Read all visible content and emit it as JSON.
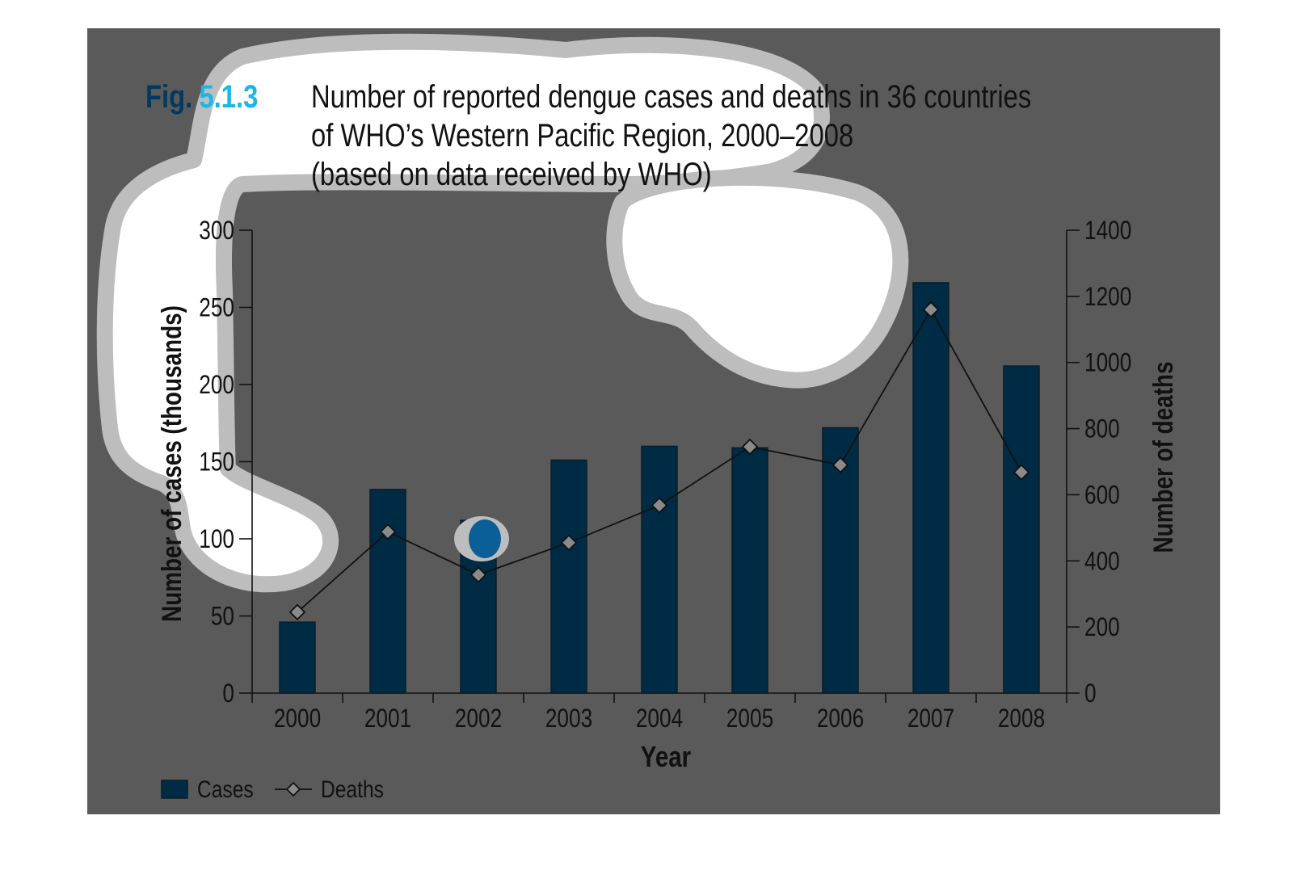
{
  "colors": {
    "panel": "#5a5a5a",
    "bar": "#002b45",
    "bar_stroke": "#0c1c28",
    "fig_dark": "#013a5e",
    "fig_light": "#1bb6e8",
    "text": "#111111",
    "blob_fill": "#ffffff",
    "blob_ring": "#bdbdbd",
    "highlight": "#0a5f96",
    "marker": "#8a8a8a"
  },
  "figure": {
    "prefix": "Fig.",
    "number": "5.1.3",
    "title_lines": [
      "Number of reported dengue cases and deaths in 36 countries",
      "of WHO’s Western Pacific Region, 2000–2008",
      "(based on data received by WHO)"
    ]
  },
  "chart_data": {
    "type": "bar",
    "categories": [
      "2000",
      "2001",
      "2002",
      "2003",
      "2004",
      "2005",
      "2006",
      "2007",
      "2008"
    ],
    "series": [
      {
        "name": "Cases",
        "type": "bar",
        "axis": "left",
        "values": [
          46,
          132,
          112,
          151,
          160,
          159,
          172,
          266,
          212
        ]
      },
      {
        "name": "Deaths",
        "type": "line",
        "axis": "right",
        "marker": "diamond",
        "values": [
          245,
          488,
          358,
          455,
          568,
          745,
          690,
          1160,
          668
        ]
      }
    ],
    "xlabel": "Year",
    "ylabel": "Number of cases (thousands)",
    "y2label": "Number of deaths",
    "ylim": [
      0,
      300
    ],
    "y2lim": [
      0,
      1400
    ],
    "yticks": [
      "0",
      "50",
      "100",
      "150",
      "200",
      "250",
      "300"
    ],
    "y2ticks": [
      "0",
      "200",
      "400",
      "600",
      "800",
      "1000",
      "1200",
      "1400"
    ],
    "grid": false,
    "legend": "bottom-left"
  }
}
